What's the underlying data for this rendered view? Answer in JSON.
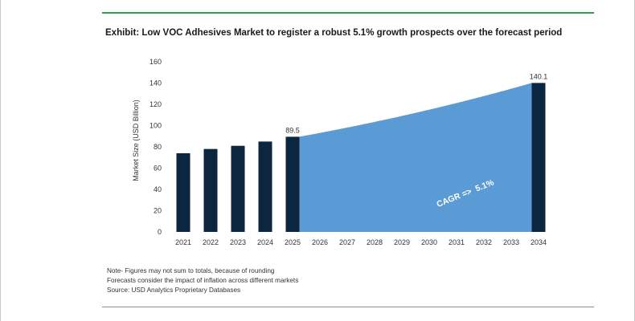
{
  "title": "Exhibit: Low VOC Adhesives Market to register a robust 5.1% growth prospects over the forecast period",
  "notes": {
    "line1": "Note- Figures may not sum to totals, because of rounding",
    "line2": "Forecasts consider the impact of inflation across different markets",
    "line3": "Source: USD Analytics Proprietary Databases"
  },
  "colors": {
    "bar": "#0d2640",
    "area": "#5b9bd5",
    "accent_rule": "#2e9e4a",
    "cagr_text": "#ffffff"
  },
  "chart_data": {
    "type": "bar",
    "title": "Exhibit: Low VOC Adhesives Market to register a robust 5.1% growth prospects over the forecast period",
    "xlabel": "",
    "ylabel": "Market Size (USD Billion)",
    "ylim": [
      0,
      160
    ],
    "yticks": [
      0,
      20,
      40,
      60,
      80,
      100,
      120,
      140,
      160
    ],
    "categories": [
      "2021",
      "2022",
      "2023",
      "2024",
      "2025",
      "2026",
      "2027",
      "2028",
      "2029",
      "2030",
      "2031",
      "2032",
      "2033",
      "2034"
    ],
    "bars": [
      {
        "category": "2021",
        "value": 74
      },
      {
        "category": "2022",
        "value": 78
      },
      {
        "category": "2023",
        "value": 81
      },
      {
        "category": "2024",
        "value": 85
      },
      {
        "category": "2025",
        "value": 89.5,
        "label": "89.5"
      },
      {
        "category": "2034",
        "value": 140.1,
        "label": "140.1"
      }
    ],
    "forecast_area": {
      "from": "2025",
      "to": "2034",
      "start_value": 89.5,
      "end_value": 140.1,
      "growth_rate": 0.051,
      "annotation": "CAGR =>  5.1%"
    },
    "grid": false,
    "legend": "none"
  }
}
